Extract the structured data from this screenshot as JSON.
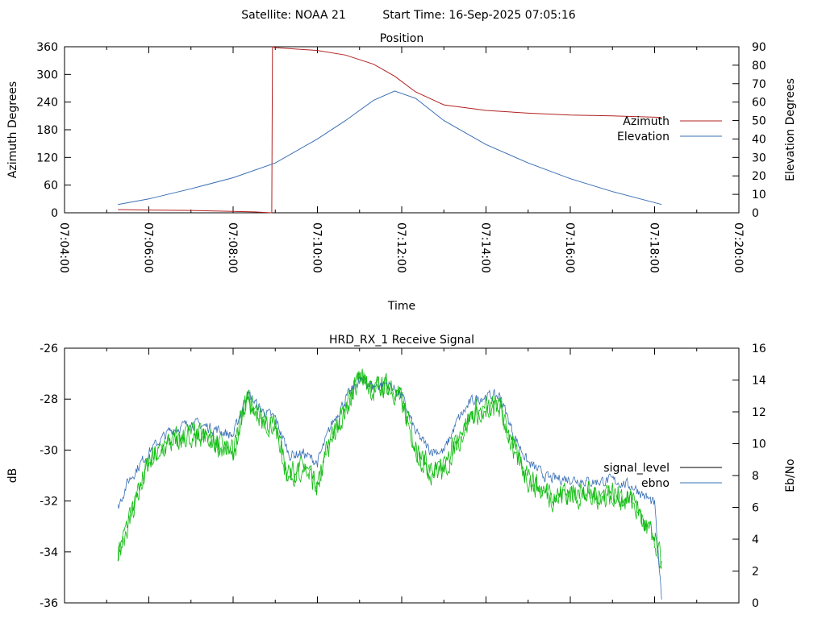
{
  "header": {
    "satellite": "Satellite: NOAA 21",
    "start_time": "Start Time: 16-Sep-2025 07:05:16"
  },
  "colors": {
    "azimuth": "#b22222",
    "elevation": "#3a6fb5",
    "signal_level": "#000000",
    "ebno_green": "#11bb11",
    "ebno_blue": "#3a6fb5"
  },
  "chart_data": [
    {
      "type": "line",
      "title": "Position",
      "xlabel": "Time",
      "ylabel": "Azimuth Degrees",
      "y2label": "Elevation Degrees",
      "x_ticks": [
        "07:04:00",
        "07:06:00",
        "07:08:00",
        "07:10:00",
        "07:12:00",
        "07:14:00",
        "07:16:00",
        "07:18:00",
        "07:20:00"
      ],
      "xlim": [
        "07:04:00",
        "07:20:00"
      ],
      "ylim": [
        0,
        360
      ],
      "y_ticks": [
        "0",
        "60",
        "120",
        "180",
        "240",
        "300",
        "360"
      ],
      "y2lim": [
        0,
        90
      ],
      "y2_ticks": [
        "0",
        "10",
        "20",
        "30",
        "40",
        "50",
        "60",
        "70",
        "80",
        "90"
      ],
      "legend_position": "right",
      "series": [
        {
          "name": "Azimuth",
          "axis": "y1",
          "x": [
            "07:05:16",
            "07:06:00",
            "07:07:00",
            "07:08:00",
            "07:08:30",
            "07:08:55",
            "07:08:56",
            "07:09:00",
            "07:10:00",
            "07:10:40",
            "07:11:20",
            "07:11:50",
            "07:12:20",
            "07:13:00",
            "07:14:00",
            "07:15:00",
            "07:16:00",
            "07:17:00",
            "07:18:10"
          ],
          "values": [
            7,
            6,
            5,
            3,
            2,
            0,
            360,
            358,
            352,
            342,
            322,
            296,
            262,
            234,
            222,
            216,
            212,
            210,
            207
          ]
        },
        {
          "name": "Elevation",
          "axis": "y2",
          "x": [
            "07:05:16",
            "07:06:00",
            "07:07:00",
            "07:08:00",
            "07:09:00",
            "07:10:00",
            "07:10:40",
            "07:11:20",
            "07:11:50",
            "07:12:20",
            "07:13:00",
            "07:14:00",
            "07:15:00",
            "07:16:00",
            "07:17:00",
            "07:18:10"
          ],
          "values": [
            4.5,
            7.5,
            13,
            19,
            27,
            40,
            50,
            61,
            66,
            62,
            50,
            37,
            27,
            18.5,
            11.5,
            4.5
          ]
        }
      ]
    },
    {
      "type": "line",
      "title": "HRD_RX_1 Receive Signal",
      "xlabel": "",
      "ylabel": "dB",
      "y2label": "Eb/No",
      "xlim": [
        "07:04:00",
        "07:20:00"
      ],
      "ylim": [
        -36,
        -26
      ],
      "y_ticks": [
        "-36",
        "-34",
        "-32",
        "-30",
        "-28",
        "-26"
      ],
      "y2lim": [
        0,
        16
      ],
      "y2_ticks": [
        "0",
        "2",
        "4",
        "6",
        "8",
        "10",
        "12",
        "14",
        "16"
      ],
      "legend_position": "right",
      "series": [
        {
          "name": "signal_level",
          "axis": "y1",
          "x": [
            "07:05:16",
            "07:05:30",
            "07:06:00",
            "07:06:30",
            "07:07:00",
            "07:07:30",
            "07:08:00",
            "07:08:20",
            "07:08:40",
            "07:09:00",
            "07:09:20",
            "07:09:40",
            "07:10:00",
            "07:10:20",
            "07:10:40",
            "07:11:00",
            "07:11:20",
            "07:11:40",
            "07:12:00",
            "07:12:20",
            "07:12:40",
            "07:13:00",
            "07:13:20",
            "07:13:40",
            "07:14:00",
            "07:14:20",
            "07:14:40",
            "07:15:00",
            "07:15:30",
            "07:16:00",
            "07:16:30",
            "07:17:00",
            "07:17:30",
            "07:18:00",
            "07:18:10"
          ],
          "values": [
            -34.0,
            -32.9,
            -30.5,
            -29.7,
            -29.4,
            -29.6,
            -30.2,
            -28.0,
            -28.8,
            -29.1,
            -31.1,
            -30.6,
            -31.5,
            -29.5,
            -28.5,
            -27.0,
            -27.7,
            -27.4,
            -28.1,
            -29.9,
            -30.8,
            -30.8,
            -29.6,
            -28.6,
            -28.4,
            -28.3,
            -30.1,
            -31.1,
            -31.8,
            -31.7,
            -31.8,
            -31.7,
            -32.1,
            -33.6,
            -34.5
          ]
        },
        {
          "name": "ebno",
          "axis": "y2",
          "x": [
            "07:05:16",
            "07:05:30",
            "07:06:00",
            "07:06:30",
            "07:07:00",
            "07:07:30",
            "07:08:00",
            "07:08:20",
            "07:08:40",
            "07:09:00",
            "07:09:20",
            "07:09:40",
            "07:10:00",
            "07:10:20",
            "07:10:40",
            "07:11:00",
            "07:11:20",
            "07:11:40",
            "07:12:00",
            "07:12:20",
            "07:12:40",
            "07:13:00",
            "07:13:20",
            "07:13:40",
            "07:14:00",
            "07:14:20",
            "07:14:40",
            "07:15:00",
            "07:15:30",
            "07:16:00",
            "07:16:30",
            "07:17:00",
            "07:17:30",
            "07:18:00",
            "07:18:10"
          ],
          "values": [
            6,
            7.6,
            9.5,
            10.8,
            11.3,
            11.0,
            10.5,
            13.2,
            12.1,
            11.6,
            9.3,
            9.4,
            8.8,
            11.2,
            12.8,
            14.0,
            13.6,
            13.8,
            13.0,
            10.7,
            9.6,
            9.5,
            11.5,
            12.7,
            13.0,
            13.0,
            10.5,
            8.8,
            7.8,
            7.8,
            7.6,
            7.7,
            7.3,
            6.2,
            0
          ]
        }
      ]
    }
  ]
}
